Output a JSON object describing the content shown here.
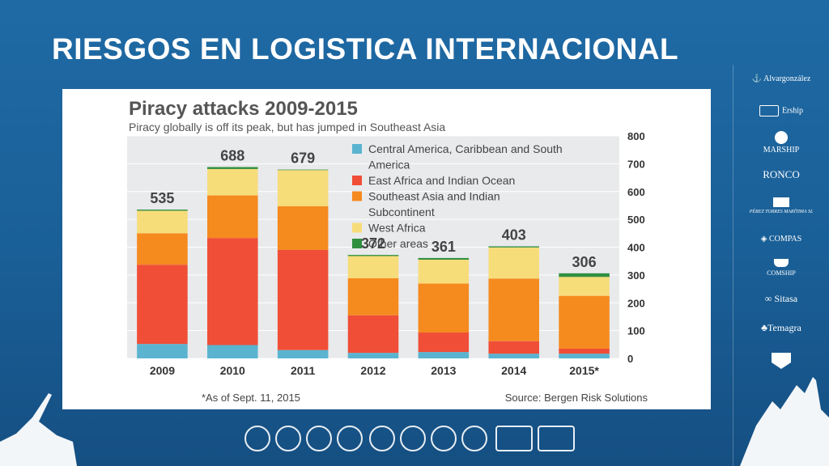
{
  "slide": {
    "title": "RIESGOS EN LOGISTICA INTERNACIONAL"
  },
  "brands": [
    "Alvargonzález",
    "Ership",
    "MARSHIP",
    "RONCO",
    "PÉREZ TORRES MARÍTIMA SL",
    "COMPAS",
    "COMSHIP",
    "Sitasa",
    "Temagra"
  ],
  "colors": {
    "background": "#1f6aa5",
    "central_america": "#5ab4d0",
    "east_africa": "#f04e37",
    "southeast_asia": "#f58a1f",
    "west_africa": "#f7dc7a",
    "other": "#2f8f3f"
  },
  "chart_data": {
    "type": "bar",
    "stacked": true,
    "title": "Piracy attacks 2009-2015",
    "subtitle": "Piracy globally is off its peak, but has jumped in Southeast Asia",
    "categories": [
      "2009",
      "2010",
      "2011",
      "2012",
      "2013",
      "2014",
      "2015*"
    ],
    "totals": [
      535,
      688,
      679,
      372,
      361,
      403,
      306
    ],
    "series": [
      {
        "name": "Central America, Caribbean and South America",
        "values": [
          52,
          48,
          30,
          20,
          23,
          17,
          17
        ]
      },
      {
        "name": "East Africa and Indian Ocean",
        "values": [
          285,
          385,
          360,
          135,
          70,
          45,
          18
        ]
      },
      {
        "name": "Southeast Asia and Indian Subcontinent",
        "values": [
          113,
          153,
          157,
          133,
          176,
          225,
          190
        ]
      },
      {
        "name": "West Africa",
        "values": [
          81,
          95,
          130,
          80,
          86,
          112,
          68
        ]
      },
      {
        "name": "Other areas",
        "values": [
          4,
          7,
          2,
          4,
          6,
          4,
          13
        ]
      }
    ],
    "ylim": [
      0,
      800
    ],
    "yticks": [
      0,
      100,
      200,
      300,
      400,
      500,
      600,
      700,
      800
    ],
    "grid": true,
    "legend": "top-right",
    "footnote": "*As of Sept. 11, 2015",
    "source": "Source: Bergen Risk Solutions"
  }
}
